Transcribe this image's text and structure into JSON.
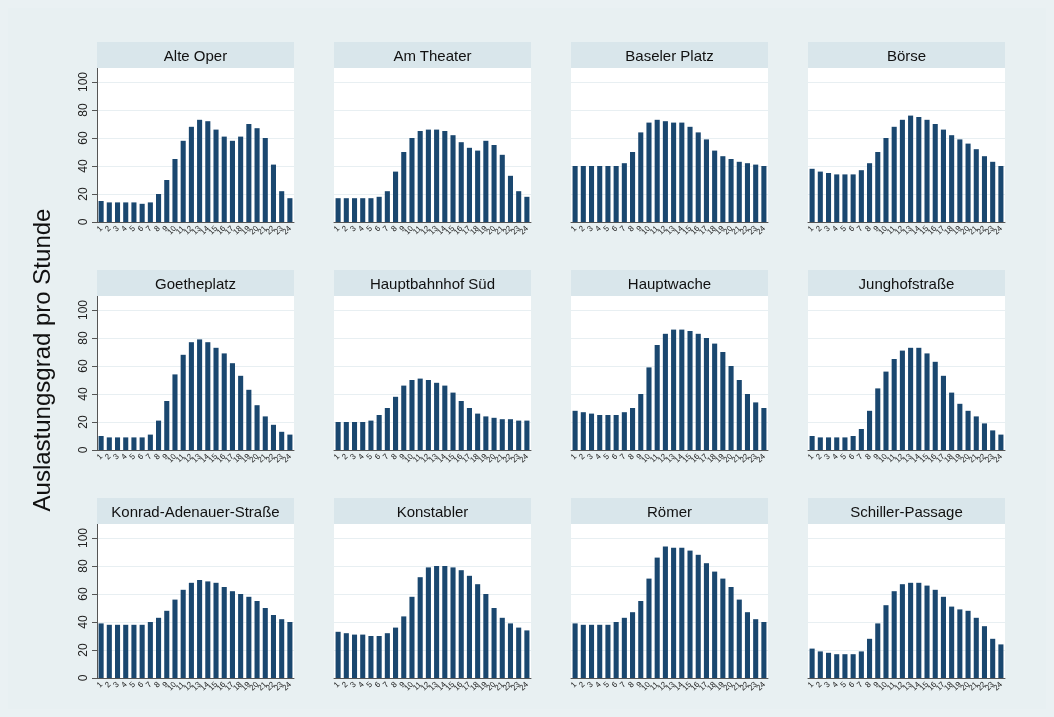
{
  "chart_data": [
    {
      "type": "bar",
      "title": "Alte Oper",
      "ylabel": "Auslastungsgrad pro Stunde",
      "categories": [
        "1",
        "2",
        "3",
        "4",
        "5",
        "6",
        "7",
        "8",
        "9",
        "10",
        "11",
        "12",
        "13",
        "14",
        "15",
        "16",
        "17",
        "18",
        "19",
        "20",
        "21",
        "22",
        "23",
        "24"
      ],
      "values": [
        15,
        14,
        14,
        14,
        14,
        13,
        14,
        20,
        30,
        45,
        58,
        68,
        73,
        72,
        66,
        61,
        58,
        61,
        70,
        67,
        60,
        41,
        22,
        17
      ],
      "color": "#1a476f",
      "ylim": [
        0,
        110
      ],
      "yticks": [
        0,
        20,
        40,
        60,
        80,
        100
      ],
      "grid": "y"
    },
    {
      "type": "bar",
      "title": "Am Theater",
      "categories": [
        "1",
        "2",
        "3",
        "4",
        "5",
        "6",
        "7",
        "8",
        "9",
        "10",
        "11",
        "12",
        "13",
        "14",
        "15",
        "16",
        "17",
        "18",
        "19",
        "20",
        "21",
        "22",
        "23",
        "24"
      ],
      "values": [
        17,
        17,
        17,
        17,
        17,
        18,
        22,
        36,
        50,
        60,
        65,
        66,
        66,
        65,
        62,
        57,
        53,
        51,
        58,
        55,
        48,
        33,
        22,
        18
      ],
      "color": "#1a476f",
      "ylim": [
        0,
        110
      ],
      "yticks": [
        0,
        20,
        40,
        60,
        80,
        100
      ],
      "grid": "y",
      "tick_labels": "x"
    },
    {
      "type": "bar",
      "title": "Baseler Platz",
      "categories": [
        "1",
        "2",
        "3",
        "4",
        "5",
        "6",
        "7",
        "8",
        "9",
        "10",
        "11",
        "12",
        "13",
        "14",
        "15",
        "16",
        "17",
        "18",
        "19",
        "20",
        "21",
        "22",
        "23",
        "24"
      ],
      "values": [
        40,
        40,
        40,
        40,
        40,
        40,
        42,
        50,
        64,
        71,
        73,
        72,
        71,
        71,
        68,
        64,
        59,
        51,
        47,
        45,
        43,
        42,
        41,
        40
      ],
      "color": "#1a476f",
      "ylim": [
        0,
        110
      ],
      "yticks": [
        0,
        20,
        40,
        60,
        80,
        100
      ],
      "grid": "y",
      "tick_labels": "x"
    },
    {
      "type": "bar",
      "title": "Börse",
      "categories": [
        "1",
        "2",
        "3",
        "4",
        "5",
        "6",
        "7",
        "8",
        "9",
        "10",
        "11",
        "12",
        "13",
        "14",
        "15",
        "16",
        "17",
        "18",
        "19",
        "20",
        "21",
        "22",
        "23",
        "24"
      ],
      "values": [
        38,
        36,
        35,
        34,
        34,
        34,
        37,
        42,
        50,
        60,
        68,
        73,
        76,
        75,
        73,
        70,
        66,
        62,
        59,
        56,
        52,
        47,
        43,
        40
      ],
      "color": "#1a476f",
      "ylim": [
        0,
        110
      ],
      "yticks": [
        0,
        20,
        40,
        60,
        80,
        100
      ],
      "grid": "y",
      "tick_labels": "x"
    },
    {
      "type": "bar",
      "title": "Goetheplatz",
      "categories": [
        "1",
        "2",
        "3",
        "4",
        "5",
        "6",
        "7",
        "8",
        "9",
        "10",
        "11",
        "12",
        "13",
        "14",
        "15",
        "16",
        "17",
        "18",
        "19",
        "20",
        "21",
        "22",
        "23",
        "24"
      ],
      "values": [
        10,
        9,
        9,
        9,
        9,
        9,
        11,
        21,
        35,
        54,
        68,
        77,
        79,
        77,
        73,
        69,
        62,
        53,
        43,
        32,
        24,
        18,
        13,
        11
      ],
      "color": "#1a476f",
      "ylim": [
        0,
        110
      ],
      "yticks": [
        0,
        20,
        40,
        60,
        80,
        100
      ],
      "grid": "y"
    },
    {
      "type": "bar",
      "title": "Hauptbahnhof Süd",
      "categories": [
        "1",
        "2",
        "3",
        "4",
        "5",
        "6",
        "7",
        "8",
        "9",
        "10",
        "11",
        "12",
        "13",
        "14",
        "15",
        "16",
        "17",
        "18",
        "19",
        "20",
        "21",
        "22",
        "23",
        "24"
      ],
      "values": [
        20,
        20,
        20,
        20,
        21,
        25,
        30,
        38,
        46,
        50,
        51,
        50,
        48,
        46,
        41,
        35,
        30,
        26,
        24,
        23,
        22,
        22,
        21,
        21
      ],
      "color": "#1a476f",
      "ylim": [
        0,
        110
      ],
      "yticks": [
        0,
        20,
        40,
        60,
        80,
        100
      ],
      "grid": "y",
      "tick_labels": "x"
    },
    {
      "type": "bar",
      "title": "Hauptwache",
      "categories": [
        "1",
        "2",
        "3",
        "4",
        "5",
        "6",
        "7",
        "8",
        "9",
        "10",
        "11",
        "12",
        "13",
        "14",
        "15",
        "16",
        "17",
        "18",
        "19",
        "20",
        "21",
        "22",
        "23",
        "24"
      ],
      "values": [
        28,
        27,
        26,
        25,
        25,
        25,
        27,
        30,
        40,
        59,
        75,
        83,
        86,
        86,
        85,
        83,
        80,
        76,
        70,
        60,
        50,
        40,
        34,
        30
      ],
      "color": "#1a476f",
      "ylim": [
        0,
        110
      ],
      "yticks": [
        0,
        20,
        40,
        60,
        80,
        100
      ],
      "grid": "y",
      "tick_labels": "x"
    },
    {
      "type": "bar",
      "title": "Junghofstraße",
      "categories": [
        "1",
        "2",
        "3",
        "4",
        "5",
        "6",
        "7",
        "8",
        "9",
        "10",
        "11",
        "12",
        "13",
        "14",
        "15",
        "16",
        "17",
        "18",
        "19",
        "20",
        "21",
        "22",
        "23",
        "24"
      ],
      "values": [
        10,
        9,
        9,
        9,
        9,
        10,
        15,
        28,
        44,
        56,
        65,
        71,
        73,
        73,
        69,
        63,
        53,
        41,
        33,
        28,
        24,
        19,
        14,
        11
      ],
      "color": "#1a476f",
      "ylim": [
        0,
        110
      ],
      "yticks": [
        0,
        20,
        40,
        60,
        80,
        100
      ],
      "grid": "y",
      "tick_labels": "x"
    },
    {
      "type": "bar",
      "title": "Konrad-Adenauer-Straße",
      "categories": [
        "1",
        "2",
        "3",
        "4",
        "5",
        "6",
        "7",
        "8",
        "9",
        "10",
        "11",
        "12",
        "13",
        "14",
        "15",
        "16",
        "17",
        "18",
        "19",
        "20",
        "21",
        "22",
        "23",
        "24"
      ],
      "values": [
        39,
        38,
        38,
        38,
        38,
        38,
        40,
        43,
        48,
        56,
        63,
        68,
        70,
        69,
        68,
        65,
        62,
        60,
        58,
        55,
        50,
        45,
        42,
        40
      ],
      "color": "#1a476f",
      "ylim": [
        0,
        110
      ],
      "yticks": [
        0,
        20,
        40,
        60,
        80,
        100
      ],
      "grid": "y"
    },
    {
      "type": "bar",
      "title": "Konstabler",
      "categories": [
        "1",
        "2",
        "3",
        "4",
        "5",
        "6",
        "7",
        "8",
        "9",
        "10",
        "11",
        "12",
        "13",
        "14",
        "15",
        "16",
        "17",
        "18",
        "19",
        "20",
        "21",
        "22",
        "23",
        "24"
      ],
      "values": [
        33,
        32,
        31,
        31,
        30,
        30,
        32,
        36,
        44,
        58,
        72,
        79,
        80,
        80,
        79,
        77,
        73,
        67,
        60,
        50,
        43,
        39,
        36,
        34
      ],
      "color": "#1a476f",
      "ylim": [
        0,
        110
      ],
      "yticks": [
        0,
        20,
        40,
        60,
        80,
        100
      ],
      "grid": "y",
      "tick_labels": "x"
    },
    {
      "type": "bar",
      "title": "Römer",
      "categories": [
        "1",
        "2",
        "3",
        "4",
        "5",
        "6",
        "7",
        "8",
        "9",
        "10",
        "11",
        "12",
        "13",
        "14",
        "15",
        "16",
        "17",
        "18",
        "19",
        "20",
        "21",
        "22",
        "23",
        "24"
      ],
      "values": [
        39,
        38,
        38,
        38,
        38,
        40,
        43,
        47,
        55,
        71,
        86,
        94,
        93,
        93,
        91,
        88,
        82,
        76,
        71,
        65,
        56,
        47,
        42,
        40
      ],
      "color": "#1a476f",
      "ylim": [
        0,
        110
      ],
      "yticks": [
        0,
        20,
        40,
        60,
        80,
        100
      ],
      "grid": "y",
      "tick_labels": "x"
    },
    {
      "type": "bar",
      "title": "Schiller-Passage",
      "categories": [
        "1",
        "2",
        "3",
        "4",
        "5",
        "6",
        "7",
        "8",
        "9",
        "10",
        "11",
        "12",
        "13",
        "14",
        "15",
        "16",
        "17",
        "18",
        "19",
        "20",
        "21",
        "22",
        "23",
        "24"
      ],
      "values": [
        21,
        19,
        18,
        17,
        17,
        17,
        19,
        28,
        39,
        52,
        62,
        67,
        68,
        68,
        66,
        63,
        58,
        51,
        49,
        48,
        43,
        37,
        28,
        24
      ],
      "color": "#1a476f",
      "ylim": [
        0,
        110
      ],
      "yticks": [
        0,
        20,
        40,
        60,
        80,
        100
      ],
      "grid": "y",
      "tick_labels": "x"
    }
  ]
}
